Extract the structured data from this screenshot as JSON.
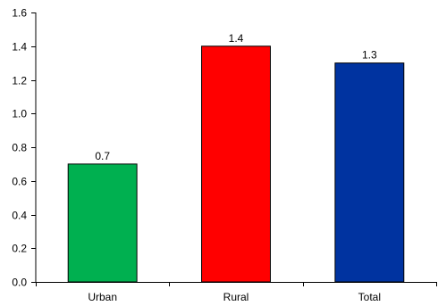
{
  "chart_data": {
    "type": "bar",
    "categories": [
      "Urban",
      "Rural",
      "Total"
    ],
    "values": [
      0.7,
      1.4,
      1.3
    ],
    "data_labels": [
      "0.7",
      "1.4",
      "1.3"
    ],
    "colors": [
      "#00b050",
      "#ff0000",
      "#0033a0"
    ],
    "title": "",
    "xlabel": "",
    "ylabel": "",
    "ylim": [
      0,
      1.6
    ],
    "yticks": [
      0.0,
      0.2,
      0.4,
      0.6,
      0.8,
      1.0,
      1.2,
      1.4,
      1.6
    ],
    "ytick_labels": [
      "0.0",
      "0.2",
      "0.4",
      "0.6",
      "0.8",
      "1.0",
      "1.2",
      "1.4",
      "1.6"
    ],
    "grid": false,
    "legend": "none"
  }
}
